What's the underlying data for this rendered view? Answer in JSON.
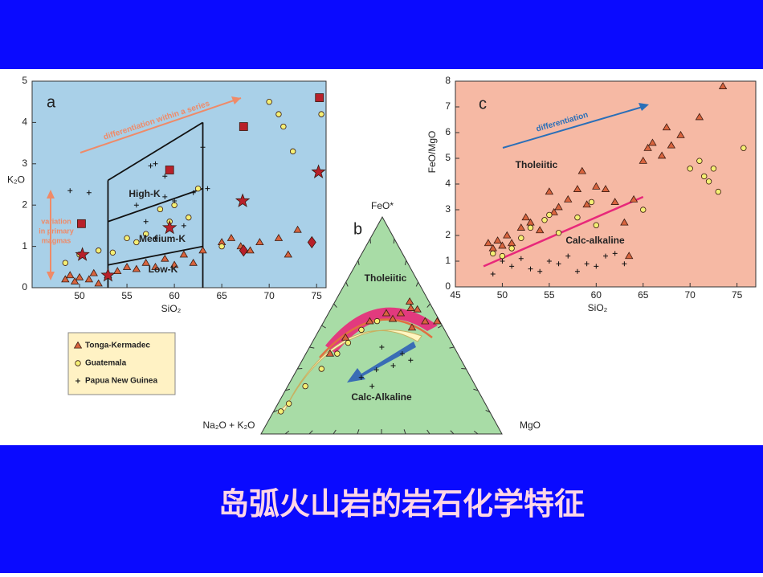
{
  "title": "岛弧火山岩的岩石化学特征",
  "chart_data": [
    {
      "type": "scatter",
      "panel_label": "a",
      "xlabel": "SiO₂",
      "ylabel": "K₂O",
      "xlim": [
        45,
        76
      ],
      "ylim": [
        0,
        5
      ],
      "xticks": [
        50,
        55,
        60,
        65,
        70,
        75
      ],
      "yticks": [
        0,
        1,
        2,
        3,
        4,
        5
      ],
      "background": "#a9d0e8",
      "series": [
        {
          "name": "Tonga-Kermadec",
          "marker": "triangle",
          "color": "#d8643e",
          "x": [
            48.5,
            49,
            49.5,
            50,
            51,
            51.5,
            52,
            53,
            54,
            55,
            56,
            57,
            58,
            59,
            60,
            61,
            62,
            63,
            65,
            66,
            67,
            68,
            69,
            71,
            73,
            72
          ],
          "values": [
            0.2,
            0.3,
            0.15,
            0.25,
            0.2,
            0.35,
            0.1,
            0.3,
            0.4,
            0.5,
            0.45,
            0.6,
            0.5,
            0.7,
            0.55,
            0.8,
            0.6,
            0.9,
            1.1,
            1.2,
            1.0,
            0.9,
            1.1,
            1.2,
            1.4,
            0.8
          ]
        },
        {
          "name": "Guatemala",
          "marker": "circle",
          "color": "#f4ef74",
          "x": [
            48.5,
            50,
            52,
            53.5,
            55,
            56,
            57,
            58.5,
            59.5,
            60,
            61.5,
            62.5,
            65,
            70,
            71,
            71.5,
            72.5,
            75.5
          ],
          "values": [
            0.6,
            0.8,
            0.9,
            0.85,
            1.2,
            1.1,
            1.3,
            1.9,
            1.6,
            2.0,
            1.7,
            2.4,
            1.0,
            4.5,
            4.2,
            3.9,
            3.3,
            4.2
          ]
        },
        {
          "name": "Papua New Guinea",
          "marker": "plus",
          "color": "#111111",
          "x": [
            49,
            51,
            56,
            57,
            58,
            59,
            60,
            57.5,
            61,
            62,
            63.5,
            63,
            58,
            59
          ],
          "values": [
            2.35,
            2.3,
            2.0,
            1.6,
            1.2,
            2.2,
            2.1,
            2.95,
            1.5,
            2.3,
            2.4,
            3.4,
            3.0,
            2.7
          ]
        }
      ],
      "extra_points": [
        {
          "marker": "star",
          "color": "#b8202a",
          "x": [
            50.3,
            59.5,
            67.2,
            75.2,
            53
          ],
          "values": [
            0.8,
            1.45,
            2.1,
            2.8,
            0.3
          ]
        },
        {
          "marker": "square",
          "color": "#b8202a",
          "x": [
            50.2,
            59.5,
            67.3,
            75.3
          ],
          "values": [
            1.55,
            2.85,
            3.9,
            4.6
          ]
        },
        {
          "marker": "diamond",
          "color": "#b8202a",
          "x": [
            67.3,
            74.5
          ],
          "values": [
            0.9,
            1.1
          ]
        }
      ],
      "field_lines": [
        {
          "x": [
            53,
            53
          ],
          "y": [
            0,
            2.6
          ]
        },
        {
          "x": [
            63,
            63
          ],
          "y": [
            0,
            4.0
          ]
        },
        {
          "x": [
            53,
            63
          ],
          "y": [
            2.6,
            4.0
          ]
        },
        {
          "x": [
            53,
            63
          ],
          "y": [
            1.6,
            2.4
          ]
        },
        {
          "x": [
            53,
            63
          ],
          "y": [
            0.55,
            1.0
          ]
        }
      ],
      "field_labels": [
        "High-K",
        "Medium-K",
        "Low-K"
      ],
      "arrow_label": "differentiation within a series",
      "variation_label": [
        "variation",
        "in primary",
        "magmas"
      ]
    },
    {
      "type": "ternary",
      "panel_label": "b",
      "top_label": "FeO*",
      "left_label": "Na₂O + K₂O",
      "right_label": "MgO",
      "background": "#a8dca6",
      "series": [
        {
          "marker": "triangle",
          "color": "#d8643e",
          "feo": [
            55.6,
            57.4,
            51.9,
            55.6,
            51.9,
            44.4,
            37,
            61,
            51.9,
            53,
            58,
            49
          ],
          "mgo": [
            30,
            36,
            42,
            24,
            19,
            12.7,
            10,
            31,
            47,
            28,
            33,
            38
          ]
        },
        {
          "marker": "circle",
          "color": "#f4ef74",
          "feo": [
            10.4,
            14,
            22,
            30,
            37,
            42,
            48,
            52
          ],
          "mgo": [
            3,
            4.5,
            7.3,
            10,
            13,
            15,
            17.5,
            22
          ]
        },
        {
          "marker": "plus",
          "color": "#111111",
          "feo": [
            29.6,
            37,
            26,
            31.5,
            22,
            34,
            40
          ],
          "mgo": [
            33,
            40,
            28.5,
            39,
            35,
            45,
            30
          ]
        }
      ],
      "labels": [
        "Tholeiitic",
        "Calc-Alkaline"
      ]
    },
    {
      "type": "scatter",
      "panel_label": "c",
      "xlabel": "SiO₂",
      "ylabel": "FeO/MgO",
      "xlim": [
        45,
        77
      ],
      "ylim": [
        0,
        8
      ],
      "xticks": [
        45,
        50,
        55,
        60,
        65,
        70,
        75
      ],
      "yticks": [
        0,
        1,
        2,
        3,
        4,
        5,
        6,
        7,
        8
      ],
      "background": "#f6b9a4",
      "series": [
        {
          "marker": "triangle",
          "color": "#d8643e",
          "x": [
            48.5,
            49,
            49.5,
            50,
            50.5,
            51,
            52,
            52.5,
            53,
            54,
            55,
            55.5,
            56,
            57,
            58,
            58.5,
            59,
            60,
            61,
            62,
            64,
            65,
            65.5,
            66,
            67,
            67.5,
            68,
            69,
            71,
            73.5,
            63.5,
            63
          ],
          "values": [
            1.7,
            1.5,
            1.8,
            1.6,
            2.0,
            1.7,
            2.3,
            2.7,
            2.5,
            2.2,
            3.7,
            2.9,
            3.1,
            3.4,
            3.8,
            4.5,
            3.2,
            3.9,
            3.8,
            3.3,
            3.4,
            4.9,
            5.4,
            5.6,
            5.1,
            6.2,
            5.5,
            5.9,
            6.6,
            7.8,
            1.2,
            2.5
          ]
        },
        {
          "marker": "circle",
          "color": "#f4ef74",
          "x": [
            49,
            50,
            51,
            52,
            53,
            54.5,
            55,
            56,
            58,
            59.5,
            60,
            65,
            70,
            71,
            71.5,
            72,
            72.5,
            73,
            75.7
          ],
          "values": [
            1.3,
            1.2,
            1.5,
            1.9,
            2.3,
            2.6,
            2.8,
            2.1,
            2.7,
            3.3,
            2.4,
            3.0,
            4.6,
            4.9,
            4.3,
            4.1,
            4.6,
            3.7,
            5.4
          ]
        },
        {
          "marker": "plus",
          "color": "#111111",
          "x": [
            49,
            50,
            51,
            52,
            53,
            54,
            55,
            56,
            57,
            58,
            59,
            60,
            61,
            62,
            63
          ],
          "values": [
            0.5,
            1.0,
            0.8,
            1.1,
            0.7,
            0.6,
            1.0,
            0.9,
            1.2,
            0.6,
            0.9,
            0.8,
            1.2,
            1.3,
            0.9
          ]
        }
      ],
      "divider": {
        "color": "#e8287a",
        "x": [
          48,
          65
        ],
        "y": [
          0.8,
          3.5
        ]
      },
      "field_labels": [
        "Tholeiitic",
        "Calc-alkaline"
      ],
      "arrow_label": "differentiation"
    }
  ]
}
